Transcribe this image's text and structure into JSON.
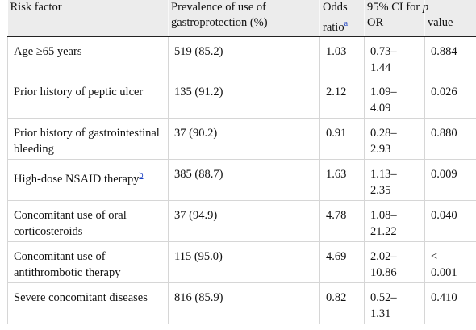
{
  "headers": {
    "risk_factor": "Risk factor",
    "prevalence": "Prevalence of use of gastroprotection (%)",
    "odds_ratio": "Odds ratio",
    "odds_ratio_note": "a",
    "ci_label": "95% CI for",
    "ci_sub": "OR",
    "p_letter": "p",
    "p_sub": "value"
  },
  "rows": [
    {
      "factor": "Age ≥65 years",
      "note": "",
      "prevalence": "519 (85.2)",
      "or": "1.03",
      "ci_a": "0.73–",
      "ci_b": "1.44",
      "p": "0.884",
      "p_b": ""
    },
    {
      "factor": "Prior history of peptic ulcer",
      "note": "",
      "prevalence": "135 (91.2)",
      "or": "2.12",
      "ci_a": "1.09–",
      "ci_b": "4.09",
      "p": "0.026",
      "p_b": ""
    },
    {
      "factor": "Prior history of gastrointestinal bleeding",
      "note": "",
      "prevalence": "37 (90.2)",
      "or": "0.91",
      "ci_a": "0.28–",
      "ci_b": "2.93",
      "p": "0.880",
      "p_b": ""
    },
    {
      "factor": "High-dose NSAID therapy",
      "note": "b",
      "prevalence": "385 (88.7)",
      "or": "1.63",
      "ci_a": "1.13–",
      "ci_b": "2.35",
      "p": "0.009",
      "p_b": ""
    },
    {
      "factor": "Concomitant use of oral corticosteroids",
      "note": "",
      "prevalence": "37 (94.9)",
      "or": "4.78",
      "ci_a": "1.08–",
      "ci_b": "21.22",
      "p": "0.040",
      "p_b": ""
    },
    {
      "factor": "Concomitant use of antithrombotic therapy",
      "note": "",
      "prevalence": "115 (95.0)",
      "or": "4.69",
      "ci_a": "2.02–",
      "ci_b": "10.86",
      "p": "<",
      "p_b": "0.001"
    },
    {
      "factor": "Severe concomitant diseases",
      "note": "",
      "prevalence": "816 (85.9)",
      "or": "0.82",
      "ci_a": "0.52–",
      "ci_b": "1.31",
      "p": "0.410",
      "p_b": ""
    }
  ]
}
